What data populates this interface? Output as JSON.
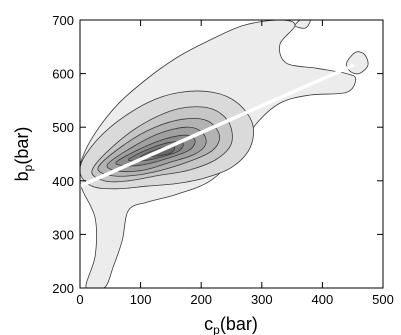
{
  "chart_data": {
    "type": "contour",
    "xlabel": "c_p(bar)",
    "xlabel_main": "c",
    "xlabel_sub": "p",
    "xlabel_unit": "(bar)",
    "ylabel": "b_p(bar)",
    "ylabel_main": "b",
    "ylabel_sub": "p",
    "ylabel_unit": "(bar)",
    "xlim": [
      0,
      500
    ],
    "ylim": [
      200,
      700
    ],
    "xticks": [
      "0",
      "100",
      "200",
      "300",
      "400",
      "500"
    ],
    "yticks": [
      "200",
      "300",
      "400",
      "500",
      "600",
      "700"
    ],
    "grid": false,
    "legend": "none",
    "fit_line": {
      "x": [
        0,
        450
      ],
      "y": [
        390,
        615
      ],
      "color": "#ffffff"
    },
    "density_peak": {
      "x": 130,
      "y": 460
    },
    "levels": [
      {
        "level": 1,
        "fill": "#ececec",
        "points": [
          [
            0,
            430
          ],
          [
            20,
            480
          ],
          [
            60,
            540
          ],
          [
            110,
            590
          ],
          [
            160,
            630
          ],
          [
            210,
            660
          ],
          [
            270,
            690
          ],
          [
            330,
            700
          ],
          [
            355,
            690
          ],
          [
            330,
            655
          ],
          [
            340,
            620
          ],
          [
            390,
            610
          ],
          [
            440,
            600
          ],
          [
            455,
            590
          ],
          [
            440,
            565
          ],
          [
            380,
            560
          ],
          [
            330,
            545
          ],
          [
            290,
            505
          ],
          [
            260,
            450
          ],
          [
            215,
            400
          ],
          [
            160,
            375
          ],
          [
            110,
            360
          ],
          [
            80,
            345
          ],
          [
            70,
            290
          ],
          [
            55,
            240
          ],
          [
            40,
            200
          ],
          [
            10,
            200
          ],
          [
            25,
            260
          ],
          [
            25,
            330
          ],
          [
            5,
            380
          ],
          [
            0,
            400
          ]
        ]
      },
      {
        "level": 2,
        "fill": "#dadada",
        "points": [
          [
            0,
            415
          ],
          [
            10,
            450
          ],
          [
            50,
            500
          ],
          [
            110,
            545
          ],
          [
            165,
            565
          ],
          [
            220,
            565
          ],
          [
            260,
            545
          ],
          [
            285,
            505
          ],
          [
            280,
            460
          ],
          [
            250,
            425
          ],
          [
            205,
            405
          ],
          [
            160,
            395
          ],
          [
            110,
            390
          ],
          [
            60,
            385
          ],
          [
            20,
            390
          ]
        ]
      },
      {
        "level": 3,
        "fill": "#c6c6c6",
        "points": [
          [
            20,
            420
          ],
          [
            60,
            470
          ],
          [
            110,
            510
          ],
          [
            165,
            535
          ],
          [
            215,
            535
          ],
          [
            245,
            510
          ],
          [
            250,
            470
          ],
          [
            225,
            440
          ],
          [
            180,
            420
          ],
          [
            130,
            410
          ],
          [
            80,
            400
          ],
          [
            40,
            400
          ]
        ]
      },
      {
        "level": 4,
        "fill": "#b3b3b3",
        "points": [
          [
            30,
            425
          ],
          [
            70,
            465
          ],
          [
            120,
            498
          ],
          [
            170,
            515
          ],
          [
            210,
            512
          ],
          [
            230,
            485
          ],
          [
            220,
            458
          ],
          [
            185,
            438
          ],
          [
            135,
            420
          ],
          [
            90,
            410
          ],
          [
            50,
            410
          ]
        ]
      },
      {
        "level": 5,
        "fill": "#a0a0a0",
        "points": [
          [
            45,
            430
          ],
          [
            85,
            462
          ],
          [
            130,
            488
          ],
          [
            175,
            500
          ],
          [
            200,
            492
          ],
          [
            208,
            470
          ],
          [
            190,
            450
          ],
          [
            150,
            435
          ],
          [
            105,
            420
          ],
          [
            65,
            418
          ]
        ]
      },
      {
        "level": 6,
        "fill": "#8d8d8d",
        "points": [
          [
            60,
            435
          ],
          [
            100,
            460
          ],
          [
            140,
            478
          ],
          [
            175,
            485
          ],
          [
            190,
            475
          ],
          [
            180,
            457
          ],
          [
            145,
            442
          ],
          [
            105,
            430
          ],
          [
            75,
            428
          ]
        ]
      },
      {
        "level": 7,
        "fill": "#7b7b7b",
        "points": [
          [
            80,
            440
          ],
          [
            115,
            460
          ],
          [
            150,
            472
          ],
          [
            170,
            470
          ],
          [
            162,
            455
          ],
          [
            130,
            443
          ],
          [
            100,
            437
          ]
        ]
      },
      {
        "level": 8,
        "fill": "#6a6a6a",
        "points": [
          [
            100,
            445
          ],
          [
            130,
            460
          ],
          [
            155,
            465
          ],
          [
            150,
            452
          ],
          [
            125,
            446
          ]
        ]
      }
    ],
    "island": {
      "fill": "#ececec",
      "points": [
        [
          440,
          620
        ],
        [
          455,
          640
        ],
        [
          470,
          635
        ],
        [
          475,
          615
        ],
        [
          460,
          600
        ],
        [
          445,
          605
        ]
      ]
    },
    "blob": {
      "fill": "#ececec",
      "points": [
        [
          355,
          690
        ],
        [
          370,
          705
        ],
        [
          380,
          700
        ],
        [
          372,
          685
        ]
      ]
    },
    "colors": {
      "contour_line": "#3a3a3a",
      "axis": "#000000",
      "background": "#ffffff"
    }
  }
}
